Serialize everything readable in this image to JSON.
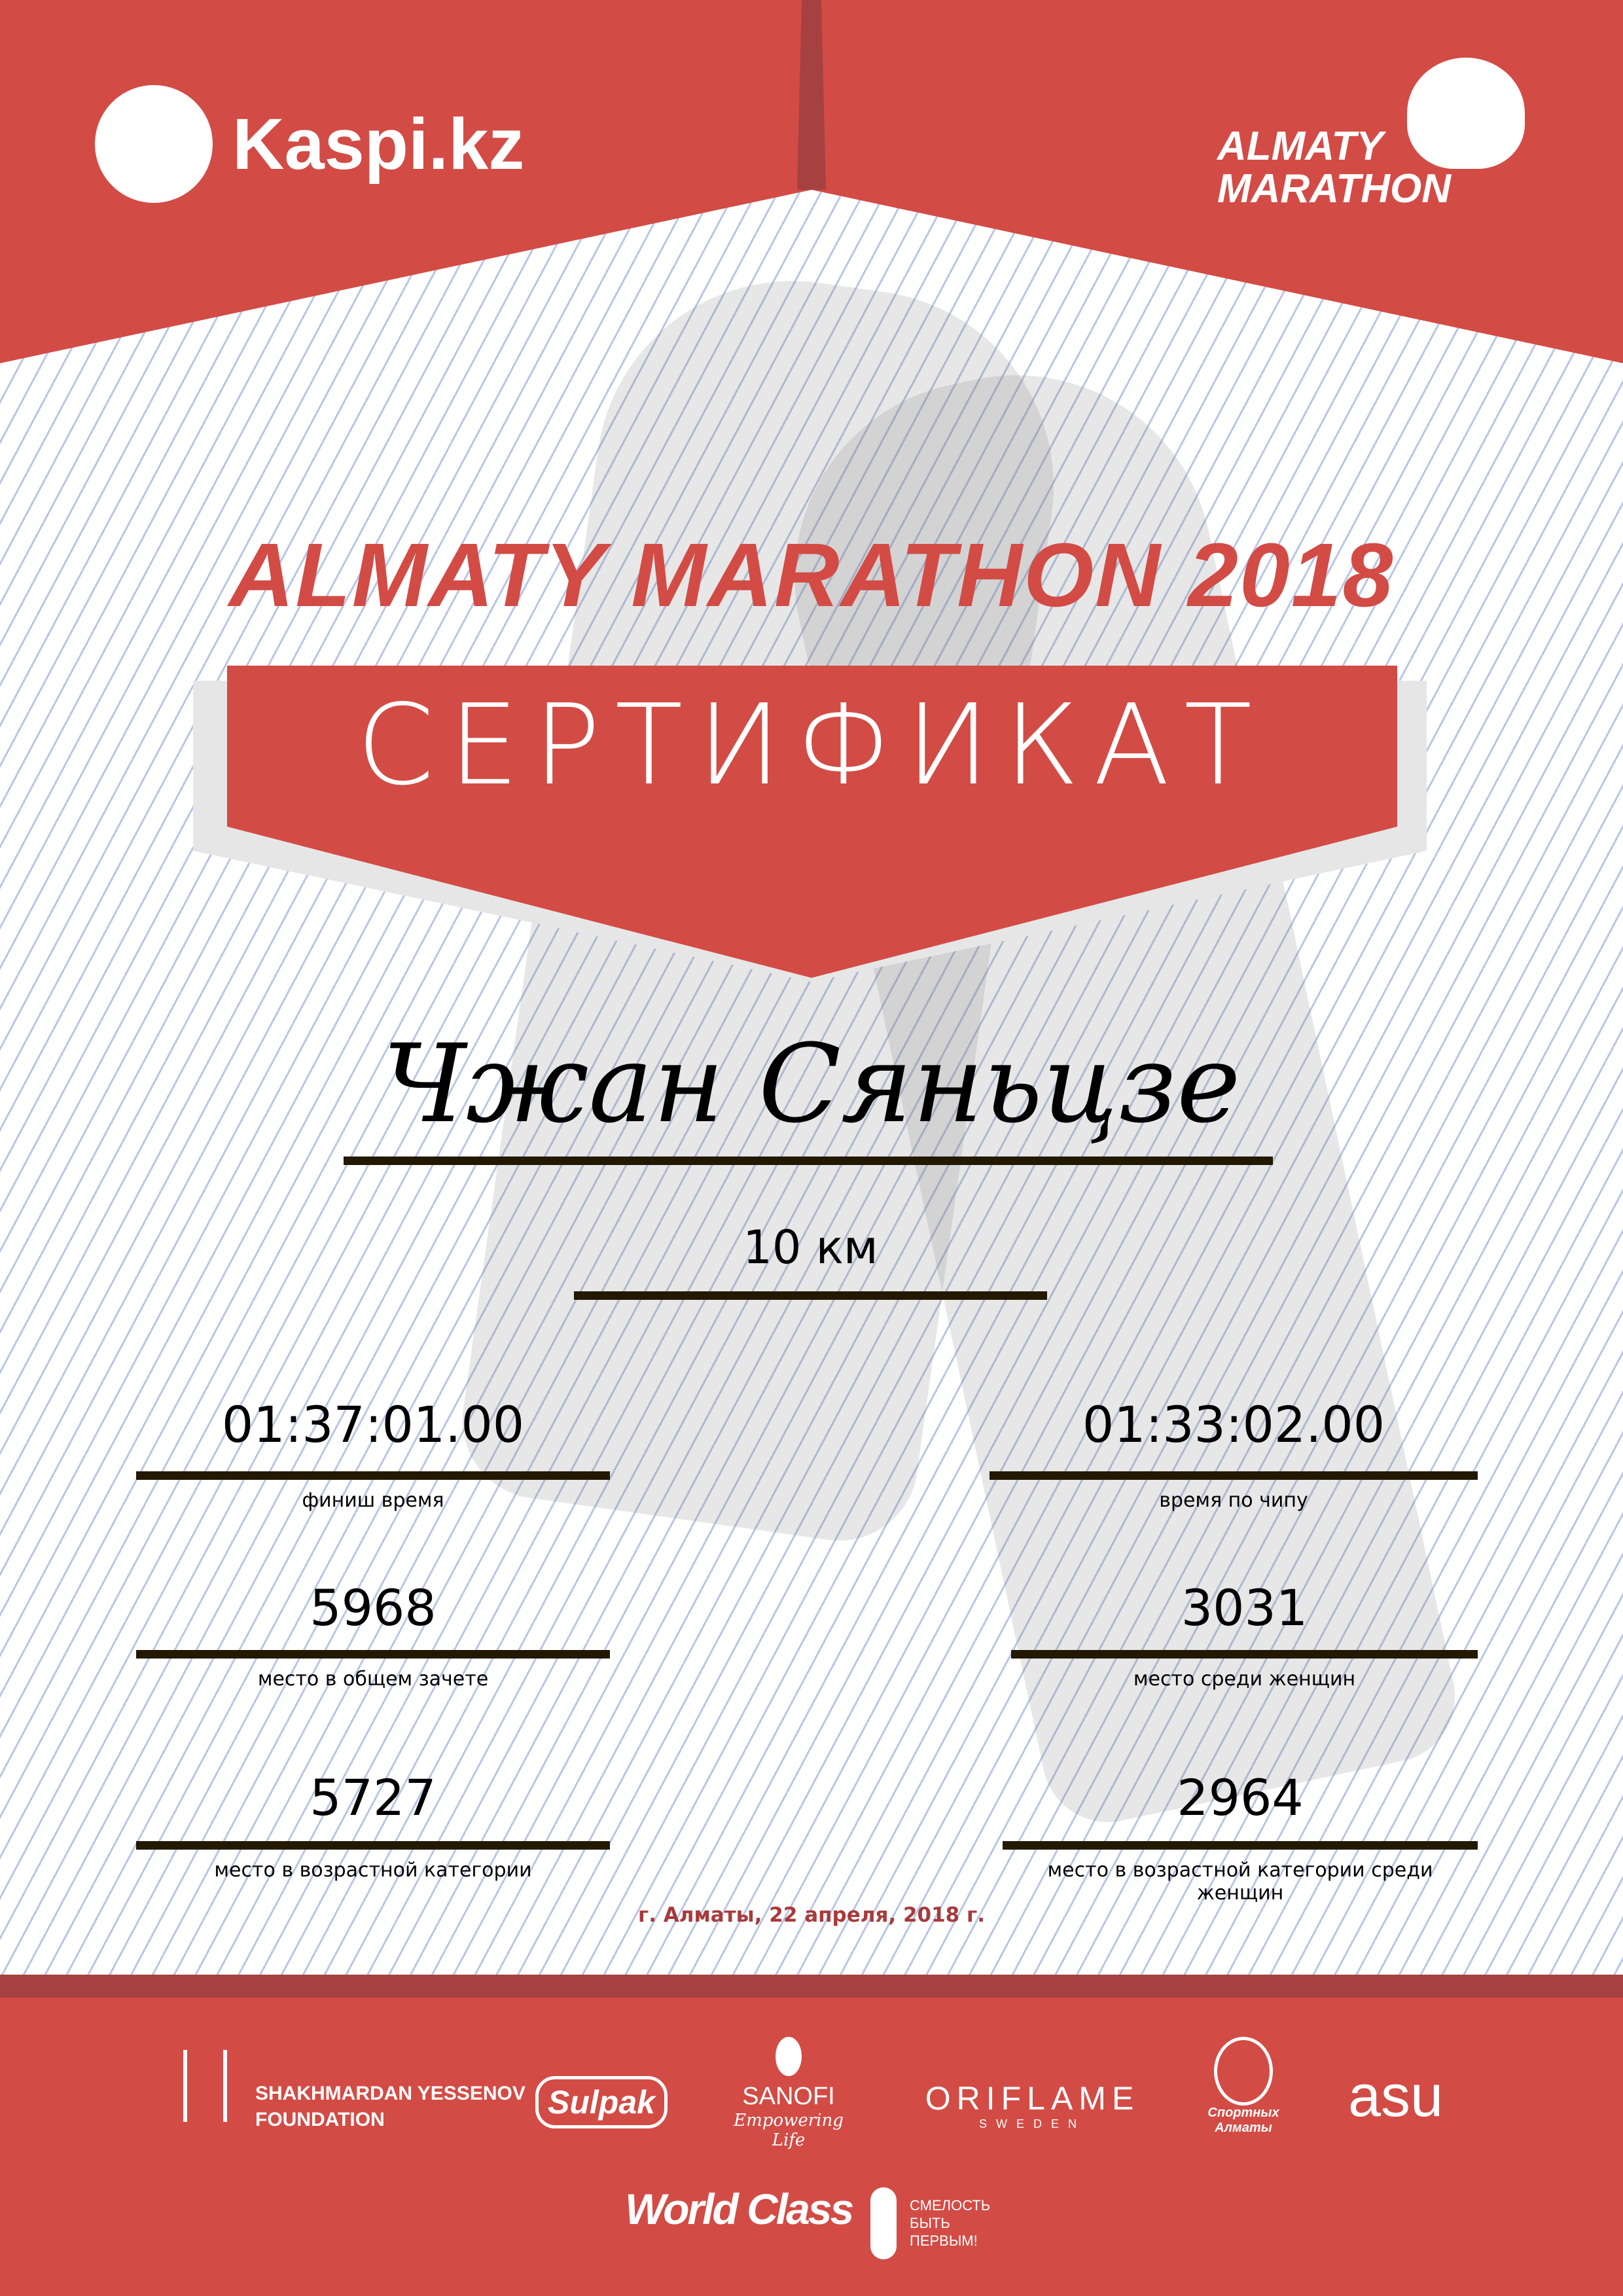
{
  "colors": {
    "brand_red": "#d34b45",
    "dark_red": "#a54141",
    "date_red": "#a83a3c",
    "line": "#231800"
  },
  "header": {
    "left_logo": "Kaspi.kz",
    "right_logo_line1": "ALMATY",
    "right_logo_line2": "MARATHON"
  },
  "title": "ALMATY MARATHON 2018",
  "banner": "СЕРТИФИКАТ",
  "participant": {
    "name": "Чжан Сяньцзе",
    "distance": "10 км"
  },
  "results": [
    {
      "value": "01:37:01.00",
      "label": "финиш время"
    },
    {
      "value": "01:33:02.00",
      "label": "время по чипу"
    },
    {
      "value": "5968",
      "label": "место в общем зачете"
    },
    {
      "value": "3031",
      "label": "место среди женщин"
    },
    {
      "value": "5727",
      "label": "место в возрастной категории"
    },
    {
      "value": "2964",
      "label": "место в возрастной категории среди женщин"
    }
  ],
  "date": "г. Алматы, 22 апреля, 2018 г.",
  "sponsors": {
    "yessenov_line1": "SHAKHMARDAN YESSENOV",
    "yessenov_line2": "FOUNDATION",
    "sulpak": "Sulpak",
    "sanofi": "SANOFI",
    "sanofi_tag": "Empowering Life",
    "oriflame": "ORIFLAME",
    "oriflame_sub": "SWEDEN",
    "sport_almaty": "Спортных Алматы",
    "asu": "asu",
    "worldclass": "World Class",
    "fund_line1": "СМЕЛОСТЬ",
    "fund_line2": "БЫТЬ",
    "fund_line3": "ПЕРВЫМ!"
  }
}
